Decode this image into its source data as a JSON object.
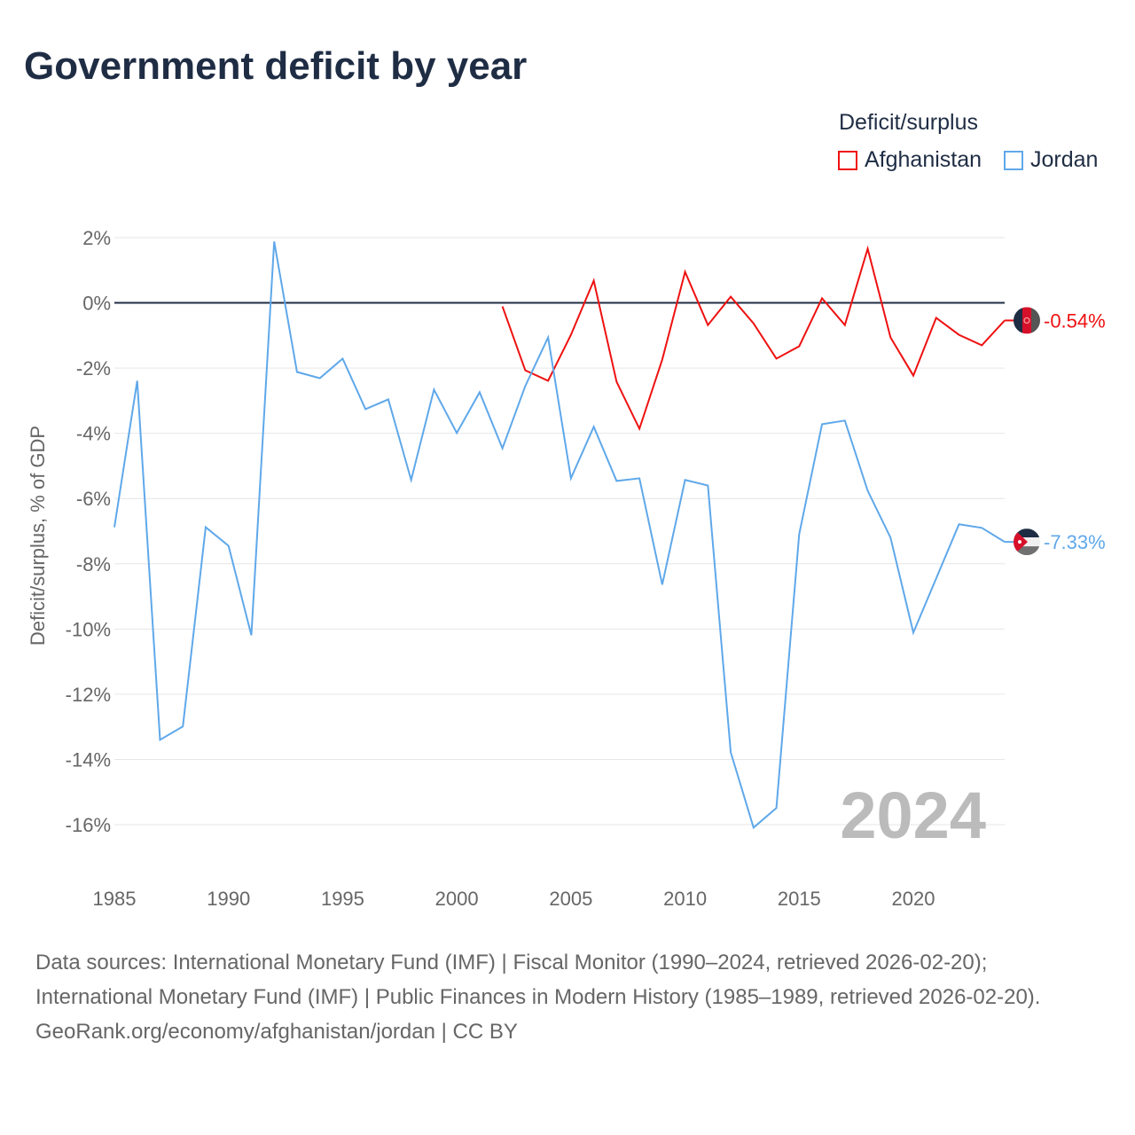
{
  "title": "Government deficit by year",
  "legend": {
    "title": "Deficit/surplus",
    "items": [
      {
        "name": "Afghanistan",
        "color": "#ee1111"
      },
      {
        "name": "Jordan",
        "color": "#5fa8ea"
      }
    ]
  },
  "chart_data": {
    "type": "line",
    "title": "Government deficit by year",
    "ylabel": "Deficit/surplus, % of GDP",
    "xlabel": "",
    "xlim": [
      1985,
      2024
    ],
    "ylim": [
      -16,
      2
    ],
    "x_ticks": [
      "1985",
      "1990",
      "1995",
      "2000",
      "2005",
      "2010",
      "2015",
      "2020"
    ],
    "y_ticks": [
      "2%",
      "0%",
      "-2%",
      "-4%",
      "-6%",
      "-8%",
      "-10%",
      "-12%",
      "-14%",
      "-16%"
    ],
    "year_watermark": "2024",
    "grid": true,
    "legend_position": "top-right",
    "series": [
      {
        "name": "Afghanistan",
        "color": "#ee1111",
        "end_label": "-0.54%",
        "start_year": 2002,
        "values": [
          -0.11,
          -2.07,
          -2.39,
          -0.98,
          0.68,
          -2.42,
          -3.86,
          -1.74,
          0.95,
          -0.68,
          0.19,
          -0.63,
          -1.71,
          -1.33,
          0.14,
          -0.68,
          1.66,
          -1.06,
          -2.23,
          -0.46,
          -0.98,
          -1.3,
          -0.54
        ]
      },
      {
        "name": "Jordan",
        "color": "#5fa8ea",
        "end_label": "-7.33%",
        "start_year": 1985,
        "values": [
          -6.88,
          -2.39,
          -13.4,
          -12.99,
          -6.88,
          -7.45,
          -10.19,
          1.88,
          -2.12,
          -2.31,
          -1.71,
          -3.26,
          -2.96,
          -5.43,
          -2.66,
          -3.99,
          -2.74,
          -4.46,
          -2.55,
          -1.06,
          -5.38,
          -3.8,
          -5.46,
          -5.38,
          -8.64,
          -5.43,
          -5.6,
          -13.78,
          -16.09,
          -15.49,
          -7.09,
          -3.72,
          -3.61,
          -5.76,
          -7.2,
          -10.11,
          -8.45,
          -6.79,
          -6.9,
          -7.33
        ]
      }
    ]
  },
  "footer": {
    "sources": "Data sources: International Monetary Fund (IMF) | Fiscal Monitor (1990–2024, retrieved 2026-02-20); International Monetary Fund (IMF) | Public Finances in Modern History (1985–1989, retrieved 2026-02-20).",
    "credit": "GeoRank.org/economy/afghanistan/jordan | CC BY"
  }
}
